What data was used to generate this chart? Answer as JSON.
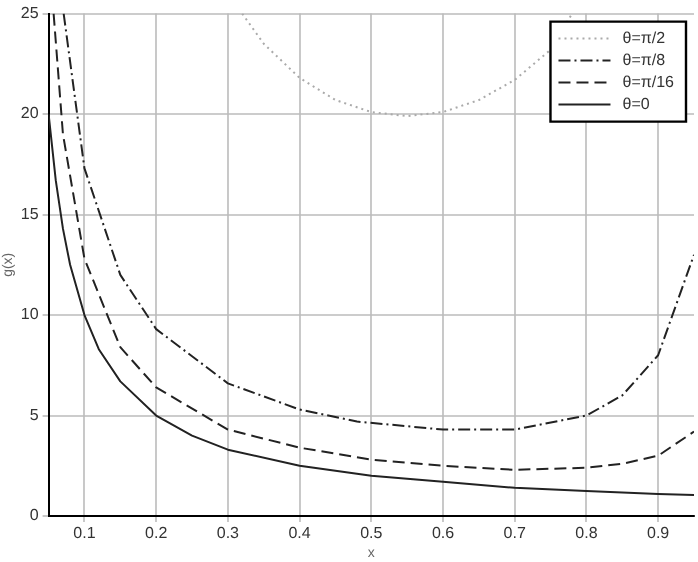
{
  "chart_data": {
    "type": "line",
    "xlabel": "x",
    "ylabel": "g(x)",
    "xlim": [
      0.05,
      0.95
    ],
    "xticks": [
      0.1,
      0.2,
      0.3,
      0.4,
      0.5,
      0.6,
      0.7,
      0.8,
      0.9
    ],
    "ylim": [
      0,
      25
    ],
    "yticks": [
      0,
      5,
      10,
      15,
      20,
      25
    ],
    "grid": true,
    "legend": "top right",
    "marker": "none",
    "series": [
      {
        "name": "θ=π/2",
        "color": "#aaaaaa",
        "line_style": "dotted",
        "x": [
          0.32,
          0.35,
          0.4,
          0.45,
          0.5,
          0.55,
          0.6,
          0.65,
          0.7,
          0.75,
          0.78
        ],
        "values": [
          25,
          23.5,
          21.8,
          20.7,
          20.1,
          19.9,
          20.1,
          20.7,
          21.7,
          23.2,
          25
        ]
      },
      {
        "name": "θ=π/8",
        "color": "#222222",
        "line_style": "dashdot",
        "x": [
          0.071,
          0.1,
          0.15,
          0.2,
          0.3,
          0.4,
          0.48,
          0.6,
          0.7,
          0.8,
          0.85,
          0.9,
          0.95
        ],
        "values": [
          25,
          17.3,
          12,
          9.3,
          6.6,
          5.3,
          4.7,
          4.3,
          4.3,
          5.0,
          6.0,
          8.0,
          13.0
        ]
      },
      {
        "name": "θ=π/16",
        "color": "#222222",
        "line_style": "dashed",
        "x": [
          0.057,
          0.07,
          0.1,
          0.15,
          0.2,
          0.3,
          0.4,
          0.5,
          0.6,
          0.7,
          0.8,
          0.85,
          0.9,
          0.95
        ],
        "values": [
          25,
          19,
          12.8,
          8.4,
          6.4,
          4.3,
          3.4,
          2.8,
          2.5,
          2.3,
          2.4,
          2.6,
          3.0,
          4.2
        ]
      },
      {
        "name": "θ=0",
        "color": "#222222",
        "line_style": "solid",
        "x": [
          0.05,
          0.06,
          0.07,
          0.08,
          0.1,
          0.12,
          0.15,
          0.2,
          0.25,
          0.3,
          0.4,
          0.5,
          0.6,
          0.7,
          0.8,
          0.9,
          0.95
        ],
        "values": [
          20,
          16.7,
          14.3,
          12.5,
          10,
          8.3,
          6.7,
          5,
          4,
          3.3,
          2.5,
          2,
          1.7,
          1.4,
          1.25,
          1.1,
          1.05
        ]
      }
    ]
  }
}
